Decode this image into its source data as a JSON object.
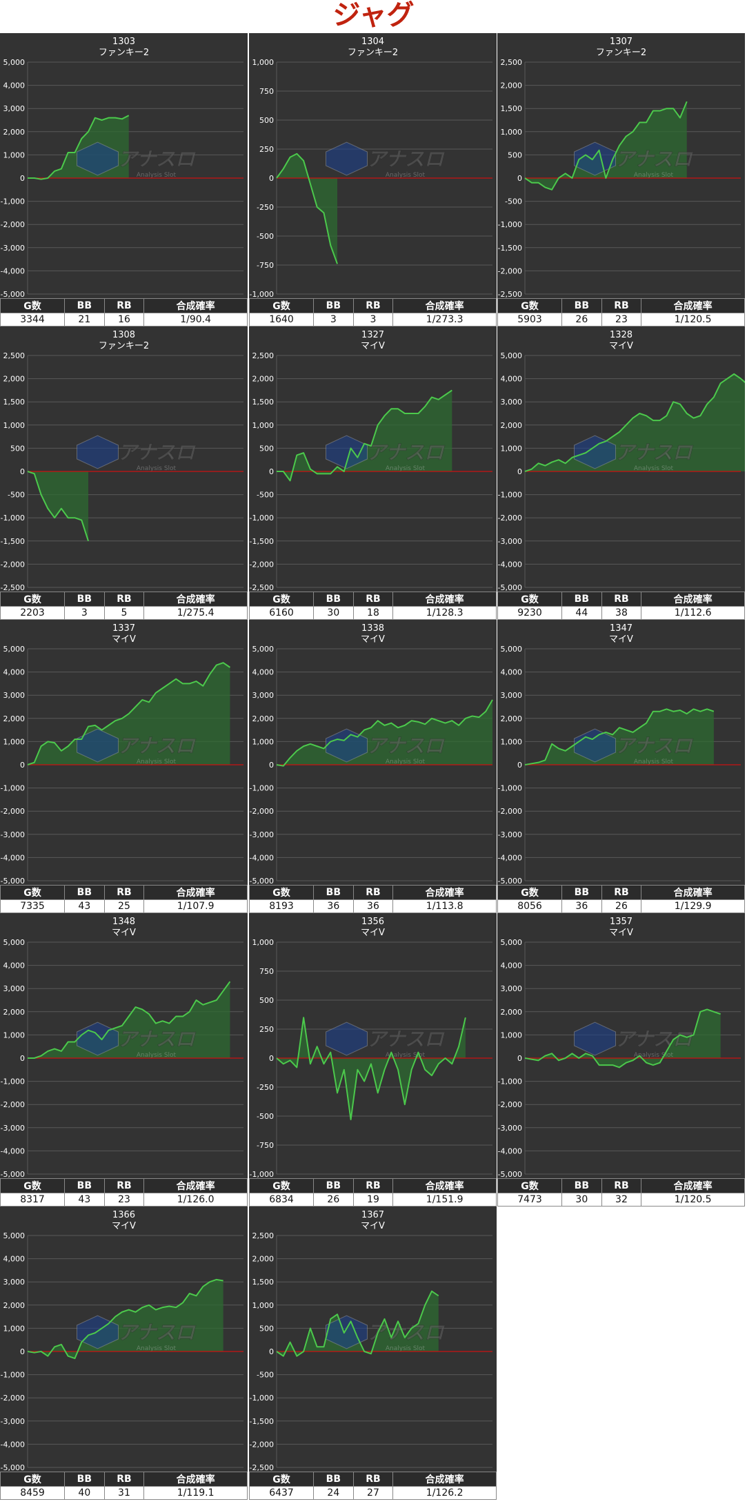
{
  "page": {
    "title": "ジャグ"
  },
  "colors": {
    "panel_bg": "#333333",
    "grid": "#5a5a5a",
    "zero_line": "#cc1111",
    "line": "#4cc94c",
    "fill": "#2e6b32",
    "title_red": "#c0230f"
  },
  "watermark": {
    "main": "アナスロ",
    "sub": "Analysis Slot"
  },
  "table_headers": {
    "games": "G数",
    "bb": "BB",
    "rb": "RB",
    "rate": "合成確率"
  },
  "chart_data": [
    {
      "type": "line",
      "machine_no": "1303",
      "model": "ファンキー2",
      "ylim": [
        -5000,
        5000
      ],
      "yticks": [
        5000,
        4000,
        3000,
        2000,
        1000,
        0,
        -1000,
        -2000,
        -3000,
        -4000,
        -5000
      ],
      "ytick_labels": [
        "5,000",
        "4,000",
        "3,000",
        "2,000",
        "1,000",
        "0",
        "-1,000",
        "-2,000",
        "-3,000",
        "-4,000",
        "-5,000"
      ],
      "xmax": 32,
      "values": [
        0,
        0,
        -50,
        0,
        300,
        400,
        1100,
        1100,
        1700,
        2000,
        2600,
        2500,
        2600,
        2600,
        2550,
        2700
      ],
      "stats": {
        "games": "3344",
        "bb": "21",
        "rb": "16",
        "rate": "1/90.4"
      }
    },
    {
      "type": "line",
      "machine_no": "1304",
      "model": "ファンキー2",
      "ylim": [
        -1000,
        1000
      ],
      "yticks": [
        1000,
        750,
        500,
        250,
        0,
        -250,
        -500,
        -750,
        -1000
      ],
      "ytick_labels": [
        "1,000",
        "750",
        "500",
        "250",
        "0",
        "-250",
        "-500",
        "-750",
        "-1,000"
      ],
      "xmax": 32,
      "values": [
        0,
        80,
        180,
        210,
        150,
        -50,
        -250,
        -300,
        -580,
        -740
      ],
      "stats": {
        "games": "1640",
        "bb": "3",
        "rb": "3",
        "rate": "1/273.3"
      }
    },
    {
      "type": "line",
      "machine_no": "1307",
      "model": "ファンキー2",
      "ylim": [
        -2500,
        2500
      ],
      "yticks": [
        2500,
        2000,
        1500,
        1000,
        500,
        0,
        -500,
        -1000,
        -1500,
        -2000,
        -2500
      ],
      "ytick_labels": [
        "2,500",
        "2,000",
        "1,500",
        "1,000",
        "500",
        "0",
        "-500",
        "-1,000",
        "-1,500",
        "-2,000",
        "-2,500"
      ],
      "xmax": 32,
      "values": [
        0,
        -100,
        -100,
        -200,
        -250,
        0,
        100,
        0,
        400,
        500,
        400,
        600,
        0,
        400,
        700,
        900,
        1000,
        1200,
        1200,
        1450,
        1450,
        1500,
        1500,
        1300,
        1650
      ],
      "stats": {
        "games": "5903",
        "bb": "26",
        "rb": "23",
        "rate": "1/120.5"
      }
    },
    {
      "type": "line",
      "machine_no": "1308",
      "model": "ファンキー2",
      "ylim": [
        -2500,
        2500
      ],
      "yticks": [
        2500,
        2000,
        1500,
        1000,
        500,
        0,
        -500,
        -1000,
        -1500,
        -2000,
        -2500
      ],
      "ytick_labels": [
        "2,500",
        "2,000",
        "1,500",
        "1,000",
        "500",
        "0",
        "-500",
        "-1,000",
        "-1,500",
        "-2,000",
        "-2,500"
      ],
      "xmax": 32,
      "values": [
        0,
        -50,
        -500,
        -800,
        -1000,
        -800,
        -1000,
        -1000,
        -1050,
        -1500
      ],
      "stats": {
        "games": "2203",
        "bb": "3",
        "rb": "5",
        "rate": "1/275.4"
      }
    },
    {
      "type": "line",
      "machine_no": "1327",
      "model": "マイV",
      "ylim": [
        -2500,
        2500
      ],
      "yticks": [
        2500,
        2000,
        1500,
        1000,
        500,
        0,
        -500,
        -1000,
        -1500,
        -2000,
        -2500
      ],
      "ytick_labels": [
        "2,500",
        "2,000",
        "1,500",
        "1,000",
        "500",
        "0",
        "-500",
        "-1,000",
        "-1,500",
        "-2,000",
        "-2,500"
      ],
      "xmax": 32,
      "values": [
        0,
        0,
        -200,
        350,
        400,
        50,
        -50,
        -50,
        -50,
        100,
        0,
        500,
        300,
        600,
        550,
        1000,
        1200,
        1350,
        1350,
        1250,
        1250,
        1250,
        1400,
        1600,
        1550,
        1650,
        1750
      ],
      "stats": {
        "games": "6160",
        "bb": "30",
        "rb": "18",
        "rate": "1/128.3"
      }
    },
    {
      "type": "line",
      "machine_no": "1328",
      "model": "マイV",
      "ylim": [
        -5000,
        5000
      ],
      "yticks": [
        5000,
        4000,
        3000,
        2000,
        1000,
        0,
        -1000,
        -2000,
        -3000,
        -4000,
        -5000
      ],
      "ytick_labels": [
        "5,000",
        "4,000",
        "3,000",
        "2,000",
        "1,000",
        "0",
        "-1,000",
        "-2,000",
        "-3,000",
        "-4,000",
        "-5,000"
      ],
      "xmax": 32,
      "values": [
        0,
        100,
        350,
        250,
        400,
        500,
        350,
        600,
        700,
        800,
        1000,
        1200,
        1300,
        1500,
        1700,
        2000,
        2300,
        2500,
        2400,
        2200,
        2200,
        2400,
        3000,
        2900,
        2500,
        2300,
        2400,
        2900,
        3200,
        3800,
        4000,
        4200,
        4000,
        3750
      ],
      "stats": {
        "games": "9230",
        "bb": "44",
        "rb": "38",
        "rate": "1/112.6"
      }
    },
    {
      "type": "line",
      "machine_no": "1337",
      "model": "マイV",
      "ylim": [
        -5000,
        5000
      ],
      "yticks": [
        5000,
        4000,
        3000,
        2000,
        1000,
        0,
        -1000,
        -2000,
        -3000,
        -4000,
        -5000
      ],
      "ytick_labels": [
        "5,000",
        "4,000",
        "3,000",
        "2,000",
        "1,000",
        "0",
        "-1,000",
        "-2,000",
        "-3,000",
        "-4,000",
        "-5,000"
      ],
      "xmax": 32,
      "values": [
        0,
        100,
        800,
        1000,
        950,
        600,
        800,
        1100,
        1100,
        1650,
        1700,
        1500,
        1700,
        1900,
        2000,
        2200,
        2500,
        2800,
        2700,
        3100,
        3300,
        3500,
        3700,
        3500,
        3500,
        3600,
        3400,
        3900,
        4300,
        4400,
        4200
      ],
      "stats": {
        "games": "7335",
        "bb": "43",
        "rb": "25",
        "rate": "1/107.9"
      }
    },
    {
      "type": "line",
      "machine_no": "1338",
      "model": "マイV",
      "ylim": [
        -5000,
        5000
      ],
      "yticks": [
        5000,
        4000,
        3000,
        2000,
        1000,
        0,
        -1000,
        -2000,
        -3000,
        -4000,
        -5000
      ],
      "ytick_labels": [
        "5,000",
        "4,000",
        "3,000",
        "2,000",
        "1,000",
        "0",
        "-1,000",
        "-2,000",
        "-3,000",
        "-4,000",
        "-5,000"
      ],
      "xmax": 32,
      "values": [
        0,
        -50,
        300,
        600,
        800,
        900,
        800,
        700,
        1000,
        1100,
        1050,
        1300,
        1200,
        1500,
        1600,
        1900,
        1700,
        1800,
        1600,
        1700,
        1900,
        1850,
        1750,
        2000,
        1900,
        1800,
        1900,
        1700,
        2000,
        2100,
        2050,
        2300,
        2800
      ],
      "stats": {
        "games": "8193",
        "bb": "36",
        "rb": "36",
        "rate": "1/113.8"
      }
    },
    {
      "type": "line",
      "machine_no": "1347",
      "model": "マイV",
      "ylim": [
        -5000,
        5000
      ],
      "yticks": [
        5000,
        4000,
        3000,
        2000,
        1000,
        0,
        -1000,
        -2000,
        -3000,
        -4000,
        -5000
      ],
      "ytick_labels": [
        "5,000",
        "4,000",
        "3,000",
        "2,000",
        "1,000",
        "0",
        "-1,000",
        "-2,000",
        "-3,000",
        "-4,000",
        "-5,000"
      ],
      "xmax": 32,
      "values": [
        0,
        50,
        100,
        200,
        900,
        700,
        600,
        800,
        1000,
        1200,
        1100,
        1300,
        1400,
        1300,
        1600,
        1500,
        1400,
        1600,
        1800,
        2300,
        2300,
        2400,
        2300,
        2350,
        2200,
        2400,
        2300,
        2400,
        2300
      ],
      "stats": {
        "games": "8056",
        "bb": "36",
        "rb": "26",
        "rate": "1/129.9"
      }
    },
    {
      "type": "line",
      "machine_no": "1348",
      "model": "マイV",
      "ylim": [
        -5000,
        5000
      ],
      "yticks": [
        5000,
        4000,
        3000,
        2000,
        1000,
        0,
        -1000,
        -2000,
        -3000,
        -4000,
        -5000
      ],
      "ytick_labels": [
        "5,000",
        "4,000",
        "3,000",
        "2,000",
        "1,000",
        "0",
        "-1,000",
        "-2,000",
        "-3,000",
        "-4,000",
        "-5,000"
      ],
      "xmax": 32,
      "values": [
        0,
        0,
        100,
        300,
        400,
        300,
        700,
        700,
        1000,
        1200,
        1100,
        800,
        1200,
        1300,
        1400,
        1800,
        2200,
        2100,
        1900,
        1500,
        1600,
        1500,
        1800,
        1800,
        2000,
        2500,
        2300,
        2400,
        2500,
        2900,
        3300
      ],
      "stats": {
        "games": "8317",
        "bb": "43",
        "rb": "23",
        "rate": "1/126.0"
      }
    },
    {
      "type": "line",
      "machine_no": "1356",
      "model": "マイV",
      "ylim": [
        -1000,
        1000
      ],
      "yticks": [
        1000,
        750,
        500,
        250,
        0,
        -250,
        -500,
        -750,
        -1000
      ],
      "ytick_labels": [
        "1,000",
        "750",
        "500",
        "250",
        "0",
        "-250",
        "-500",
        "-750",
        "-1,000"
      ],
      "xmax": 32,
      "values": [
        0,
        -50,
        -20,
        -80,
        350,
        -50,
        100,
        -50,
        50,
        -300,
        -100,
        -530,
        -100,
        -200,
        -50,
        -300,
        -100,
        50,
        -100,
        -400,
        -100,
        50,
        -100,
        -150,
        -50,
        0,
        -50,
        100,
        350
      ],
      "stats": {
        "games": "6834",
        "bb": "26",
        "rb": "19",
        "rate": "1/151.9"
      }
    },
    {
      "type": "line",
      "machine_no": "1357",
      "model": "マイV",
      "ylim": [
        -5000,
        5000
      ],
      "yticks": [
        5000,
        4000,
        3000,
        2000,
        1000,
        0,
        -1000,
        -2000,
        -3000,
        -4000,
        -5000
      ],
      "ytick_labels": [
        "5,000",
        "4,000",
        "3,000",
        "2,000",
        "1,000",
        "0",
        "-1,000",
        "-2,000",
        "-3,000",
        "-4,000",
        "-5,000"
      ],
      "xmax": 32,
      "values": [
        0,
        -50,
        -100,
        100,
        200,
        -100,
        0,
        200,
        0,
        200,
        100,
        -300,
        -300,
        -300,
        -400,
        -200,
        -100,
        100,
        -200,
        -300,
        -200,
        300,
        800,
        1000,
        900,
        1000,
        2000,
        2100,
        2000,
        1900
      ],
      "stats": {
        "games": "7473",
        "bb": "30",
        "rb": "32",
        "rate": "1/120.5"
      }
    },
    {
      "type": "line",
      "machine_no": "1366",
      "model": "マイV",
      "ylim": [
        -5000,
        5000
      ],
      "yticks": [
        5000,
        4000,
        3000,
        2000,
        1000,
        0,
        -1000,
        -2000,
        -3000,
        -4000,
        -5000
      ],
      "ytick_labels": [
        "5,000",
        "4,000",
        "3,000",
        "2,000",
        "1,000",
        "0",
        "-1,000",
        "-2,000",
        "-3,000",
        "-4,000",
        "-5,000"
      ],
      "xmax": 32,
      "values": [
        0,
        -50,
        0,
        -200,
        200,
        300,
        -200,
        -300,
        400,
        700,
        800,
        1000,
        1200,
        1500,
        1700,
        1800,
        1700,
        1900,
        2000,
        1800,
        1900,
        1950,
        1900,
        2100,
        2500,
        2400,
        2800,
        3000,
        3100,
        3050
      ],
      "stats": {
        "games": "8459",
        "bb": "40",
        "rb": "31",
        "rate": "1/119.1"
      }
    },
    {
      "type": "line",
      "machine_no": "1367",
      "model": "マイV",
      "ylim": [
        -2500,
        2500
      ],
      "yticks": [
        2500,
        2000,
        1500,
        1000,
        500,
        0,
        -500,
        -1000,
        -1500,
        -2000,
        -2500
      ],
      "ytick_labels": [
        "2,500",
        "2,000",
        "1,500",
        "1,000",
        "500",
        "0",
        "-500",
        "-1,000",
        "-1,500",
        "-2,000",
        "-2,500"
      ],
      "xmax": 32,
      "values": [
        0,
        -100,
        200,
        -100,
        0,
        500,
        100,
        100,
        700,
        800,
        400,
        650,
        300,
        0,
        -50,
        400,
        700,
        300,
        650,
        300,
        500,
        600,
        1000,
        1300,
        1200
      ],
      "stats": {
        "games": "6437",
        "bb": "24",
        "rb": "27",
        "rate": "1/126.2"
      }
    }
  ]
}
